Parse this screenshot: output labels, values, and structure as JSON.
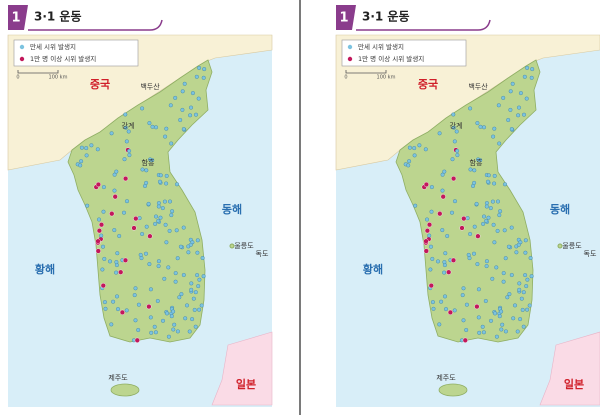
{
  "panels": [
    {
      "number": "1",
      "title": "3·1 운동",
      "legend": [
        "만세 시위 발생지",
        "1만 명 이상 시위 발생지"
      ],
      "scale": [
        "0",
        "100 km"
      ],
      "places": [
        "중국",
        "백두산",
        "강계",
        "함흥",
        "동해",
        "황해",
        "울릉도",
        "독도",
        "제주도",
        "일본"
      ]
    },
    {
      "number": "1",
      "title": "3·1 운동",
      "legend": [
        "만세 시위 발생지",
        "1만 명 이상 시위 발생지"
      ],
      "scale": [
        "0",
        "100 km"
      ],
      "places": [
        "중국",
        "백두산",
        "강계",
        "함흥",
        "동해",
        "황해",
        "울릉도",
        "독도",
        "제주도",
        "일본"
      ]
    }
  ]
}
